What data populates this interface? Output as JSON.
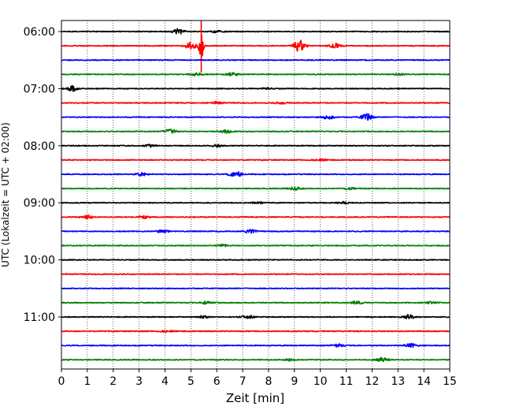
{
  "chart_data": {
    "type": "line",
    "title": "",
    "xlabel": "Zeit  [min]",
    "ylabel": "UTC (Lokalzeit = UTC + 02:00)",
    "xlim": [
      0,
      15
    ],
    "x_ticks": [
      "0",
      "1",
      "2",
      "3",
      "4",
      "5",
      "6",
      "7",
      "8",
      "9",
      "10",
      "11",
      "12",
      "13",
      "14",
      "15"
    ],
    "y_ticks": [
      "06:00",
      "07:00",
      "08:00",
      "09:00",
      "10:00",
      "11:00"
    ],
    "grid": "vertical dotted lines at each minute",
    "line_minutes": 15,
    "trace_colors": [
      "#000000",
      "#ff0000",
      "#0000ff",
      "#008000"
    ],
    "start_time": "06:00",
    "traces": [
      {
        "time": "06:00",
        "color": "#000000",
        "events": [
          {
            "t": 4.5,
            "amp": 0.35
          },
          {
            "t": 6.0,
            "amp": 0.12
          }
        ]
      },
      {
        "time": "06:15",
        "color": "#ff0000",
        "events": [
          {
            "t": 5.0,
            "amp": 0.5
          },
          {
            "t": 5.4,
            "amp": 2.0
          },
          {
            "t": 9.2,
            "amp": 0.8
          },
          {
            "t": 10.6,
            "amp": 0.3
          }
        ]
      },
      {
        "time": "06:30",
        "color": "#0000ff",
        "events": []
      },
      {
        "time": "06:45",
        "color": "#008000",
        "events": [
          {
            "t": 5.2,
            "amp": 0.2
          },
          {
            "t": 6.6,
            "amp": 0.25
          },
          {
            "t": 13.0,
            "amp": 0.12
          }
        ]
      },
      {
        "time": "07:00",
        "color": "#000000",
        "events": [
          {
            "t": 0.4,
            "amp": 0.35
          },
          {
            "t": 8.0,
            "amp": 0.1
          }
        ]
      },
      {
        "time": "07:15",
        "color": "#ff0000",
        "events": [
          {
            "t": 6.0,
            "amp": 0.15
          },
          {
            "t": 8.5,
            "amp": 0.12
          }
        ]
      },
      {
        "time": "07:30",
        "color": "#0000ff",
        "events": [
          {
            "t": 10.3,
            "amp": 0.25
          },
          {
            "t": 11.8,
            "amp": 0.45
          }
        ]
      },
      {
        "time": "07:45",
        "color": "#008000",
        "events": [
          {
            "t": 4.2,
            "amp": 0.3
          },
          {
            "t": 6.4,
            "amp": 0.2
          }
        ]
      },
      {
        "time": "08:00",
        "color": "#000000",
        "events": [
          {
            "t": 3.4,
            "amp": 0.15
          },
          {
            "t": 6.0,
            "amp": 0.15
          }
        ]
      },
      {
        "time": "08:15",
        "color": "#ff0000",
        "events": [
          {
            "t": 10.0,
            "amp": 0.12
          }
        ]
      },
      {
        "time": "08:30",
        "color": "#0000ff",
        "events": [
          {
            "t": 6.7,
            "amp": 0.45
          },
          {
            "t": 3.1,
            "amp": 0.2
          }
        ]
      },
      {
        "time": "08:45",
        "color": "#008000",
        "events": [
          {
            "t": 9.0,
            "amp": 0.2
          },
          {
            "t": 11.2,
            "amp": 0.15
          }
        ]
      },
      {
        "time": "09:00",
        "color": "#000000",
        "events": [
          {
            "t": 10.9,
            "amp": 0.15
          },
          {
            "t": 7.6,
            "amp": 0.12
          }
        ]
      },
      {
        "time": "09:15",
        "color": "#ff0000",
        "events": [
          {
            "t": 1.0,
            "amp": 0.25
          },
          {
            "t": 3.2,
            "amp": 0.15
          }
        ]
      },
      {
        "time": "09:30",
        "color": "#0000ff",
        "events": [
          {
            "t": 7.3,
            "amp": 0.25
          },
          {
            "t": 3.9,
            "amp": 0.2
          }
        ]
      },
      {
        "time": "09:45",
        "color": "#008000",
        "events": [
          {
            "t": 6.2,
            "amp": 0.15
          }
        ]
      },
      {
        "time": "10:00",
        "color": "#000000",
        "events": []
      },
      {
        "time": "10:15",
        "color": "#ff0000",
        "events": []
      },
      {
        "time": "10:30",
        "color": "#0000ff",
        "events": []
      },
      {
        "time": "10:45",
        "color": "#008000",
        "events": [
          {
            "t": 5.6,
            "amp": 0.2
          },
          {
            "t": 11.4,
            "amp": 0.2
          },
          {
            "t": 14.3,
            "amp": 0.15
          }
        ]
      },
      {
        "time": "11:00",
        "color": "#000000",
        "events": [
          {
            "t": 7.2,
            "amp": 0.25
          },
          {
            "t": 13.4,
            "amp": 0.3
          },
          {
            "t": 5.5,
            "amp": 0.15
          }
        ]
      },
      {
        "time": "11:15",
        "color": "#ff0000",
        "events": [
          {
            "t": 4.1,
            "amp": 0.12
          }
        ]
      },
      {
        "time": "11:30",
        "color": "#0000ff",
        "events": [
          {
            "t": 10.7,
            "amp": 0.2
          },
          {
            "t": 13.5,
            "amp": 0.25
          }
        ]
      },
      {
        "time": "11:45",
        "color": "#008000",
        "events": [
          {
            "t": 12.4,
            "amp": 0.3
          },
          {
            "t": 8.8,
            "amp": 0.12
          }
        ]
      }
    ]
  }
}
